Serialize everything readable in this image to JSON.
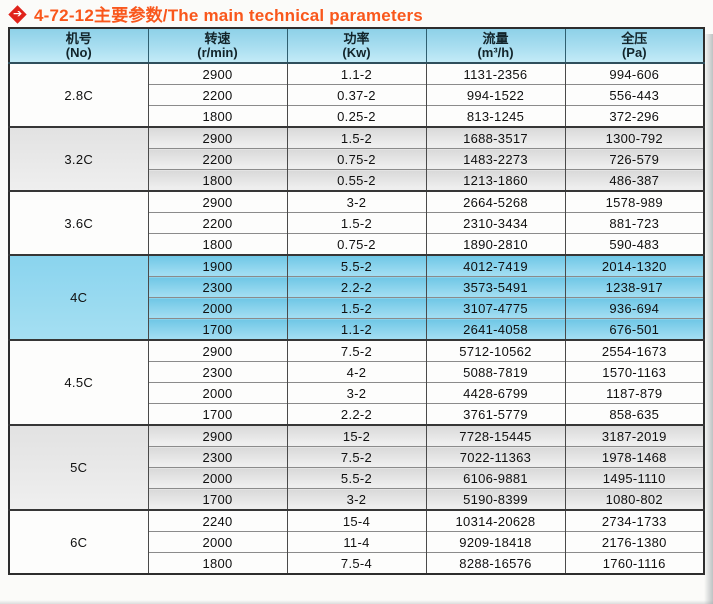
{
  "title": {
    "text": "4-72-12主要参数/The main technical parameters",
    "color": "#f9571c",
    "bullet_icon": "diamond-arrow-icon"
  },
  "colors": {
    "title_orange": "#f9571c",
    "bullet_red": "#e0231b",
    "header_blue_top": "#8ed1e8",
    "header_blue_bottom": "#c3ebf7",
    "highlight_blue": "#7ccbe8",
    "group_gray": "#dcdcdc",
    "table_border": "#2d2d2d"
  },
  "table": {
    "columns": [
      {
        "zh": "机号",
        "en": "(No)"
      },
      {
        "zh": "转速",
        "en": "(r/min)"
      },
      {
        "zh": "功率",
        "en": "(Kw)"
      },
      {
        "zh": "流量",
        "en": "(m³/h)"
      },
      {
        "zh": "全压",
        "en": "(Pa)"
      }
    ],
    "groups": [
      {
        "model": "2.8C",
        "shade": "white",
        "rows": [
          {
            "speed": "2900",
            "power": "1.1-2",
            "flow": "1131-2356",
            "pressure": "994-606"
          },
          {
            "speed": "2200",
            "power": "0.37-2",
            "flow": "994-1522",
            "pressure": "556-443"
          },
          {
            "speed": "1800",
            "power": "0.25-2",
            "flow": "813-1245",
            "pressure": "372-296"
          }
        ]
      },
      {
        "model": "3.2C",
        "shade": "gray",
        "rows": [
          {
            "speed": "2900",
            "power": "1.5-2",
            "flow": "1688-3517",
            "pressure": "1300-792"
          },
          {
            "speed": "2200",
            "power": "0.75-2",
            "flow": "1483-2273",
            "pressure": "726-579"
          },
          {
            "speed": "1800",
            "power": "0.55-2",
            "flow": "1213-1860",
            "pressure": "486-387"
          }
        ]
      },
      {
        "model": "3.6C",
        "shade": "white",
        "rows": [
          {
            "speed": "2900",
            "power": "3-2",
            "flow": "2664-5268",
            "pressure": "1578-989"
          },
          {
            "speed": "2200",
            "power": "1.5-2",
            "flow": "2310-3434",
            "pressure": "881-723"
          },
          {
            "speed": "1800",
            "power": "0.75-2",
            "flow": "1890-2810",
            "pressure": "590-483"
          }
        ]
      },
      {
        "model": "4C",
        "shade": "blue",
        "rows": [
          {
            "speed": "1900",
            "power": "5.5-2",
            "flow": "4012-7419",
            "pressure": "2014-1320"
          },
          {
            "speed": "2300",
            "power": "2.2-2",
            "flow": "3573-5491",
            "pressure": "1238-917"
          },
          {
            "speed": "2000",
            "power": "1.5-2",
            "flow": "3107-4775",
            "pressure": "936-694"
          },
          {
            "speed": "1700",
            "power": "1.1-2",
            "flow": "2641-4058",
            "pressure": "676-501"
          }
        ]
      },
      {
        "model": "4.5C",
        "shade": "white",
        "rows": [
          {
            "speed": "2900",
            "power": "7.5-2",
            "flow": "5712-10562",
            "pressure": "2554-1673"
          },
          {
            "speed": "2300",
            "power": "4-2",
            "flow": "5088-7819",
            "pressure": "1570-1163"
          },
          {
            "speed": "2000",
            "power": "3-2",
            "flow": "4428-6799",
            "pressure": "1187-879"
          },
          {
            "speed": "1700",
            "power": "2.2-2",
            "flow": "3761-5779",
            "pressure": "858-635"
          }
        ]
      },
      {
        "model": "5C",
        "shade": "gray",
        "rows": [
          {
            "speed": "2900",
            "power": "15-2",
            "flow": "7728-15445",
            "pressure": "3187-2019"
          },
          {
            "speed": "2300",
            "power": "7.5-2",
            "flow": "7022-11363",
            "pressure": "1978-1468"
          },
          {
            "speed": "2000",
            "power": "5.5-2",
            "flow": "6106-9881",
            "pressure": "1495-1110"
          },
          {
            "speed": "1700",
            "power": "3-2",
            "flow": "5190-8399",
            "pressure": "1080-802"
          }
        ]
      },
      {
        "model": "6C",
        "shade": "white",
        "rows": [
          {
            "speed": "2240",
            "power": "15-4",
            "flow": "10314-20628",
            "pressure": "2734-1733"
          },
          {
            "speed": "2000",
            "power": "11-4",
            "flow": "9209-18418",
            "pressure": "2176-1380"
          },
          {
            "speed": "1800",
            "power": "7.5-4",
            "flow": "8288-16576",
            "pressure": "1760-1116"
          }
        ]
      }
    ]
  }
}
